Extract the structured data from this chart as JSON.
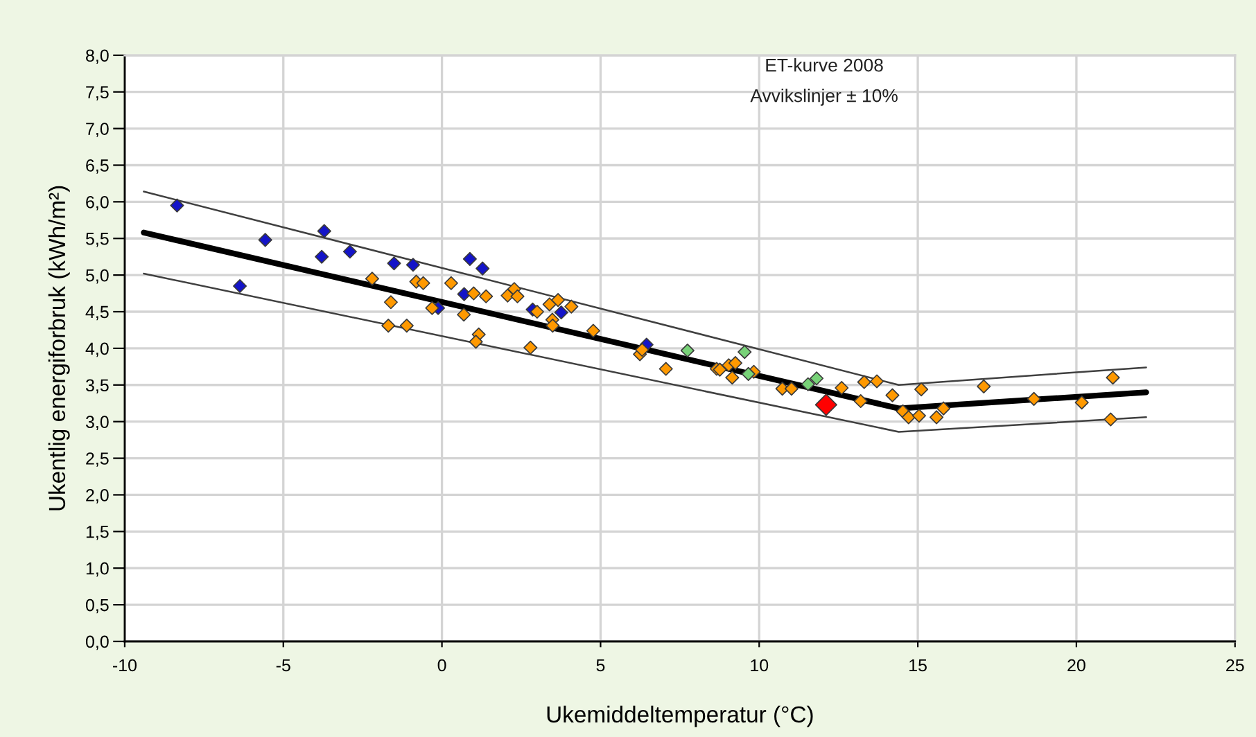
{
  "chart_data": {
    "type": "scatter",
    "xlabel": "Ukemiddeltemperatur (°C)",
    "ylabel": "Ukentlig energiforbruk (kWh/m²)",
    "annotations": [
      "ET-kurve 2008",
      "Avvikslinjer ± 10%"
    ],
    "xlim": [
      -10,
      25
    ],
    "xticks": [
      -10,
      -5,
      0,
      5,
      10,
      15,
      20,
      25
    ],
    "ylim": [
      0,
      8
    ],
    "yticks": [
      {
        "value": 0,
        "label": "0,0"
      },
      {
        "value": 0.5,
        "label": "0,5"
      },
      {
        "value": 1,
        "label": "1,0"
      },
      {
        "value": 1.5,
        "label": "1,5"
      },
      {
        "value": 2,
        "label": "2,0"
      },
      {
        "value": 2.5,
        "label": "2,5"
      },
      {
        "value": 3,
        "label": "3,0"
      },
      {
        "value": 3.5,
        "label": "3,5"
      },
      {
        "value": 4,
        "label": "4,0"
      },
      {
        "value": 4.5,
        "label": "4,5"
      },
      {
        "value": 5,
        "label": "5,0"
      },
      {
        "value": 5.5,
        "label": "5,5"
      },
      {
        "value": 6,
        "label": "6,0"
      },
      {
        "value": 6.5,
        "label": "6,5"
      },
      {
        "value": 7,
        "label": "7,0"
      },
      {
        "value": 7.5,
        "label": "7,5"
      },
      {
        "value": 8,
        "label": "8,0"
      }
    ],
    "grid": true,
    "marker": "diamond",
    "series": [
      {
        "type": "line",
        "marker": "none",
        "color": "#000000",
        "x": [
          -9.4,
          14.4,
          22.2
        ],
        "values": [
          5.58,
          3.18,
          3.4
        ]
      },
      {
        "type": "line",
        "marker": "none",
        "color": "#404040",
        "x": [
          -9.4,
          14.4,
          22.2
        ],
        "values": [
          6.14,
          3.5,
          3.74
        ]
      },
      {
        "type": "line",
        "marker": "none",
        "color": "#404040",
        "x": [
          -9.4,
          14.4,
          22.2
        ],
        "values": [
          5.02,
          2.86,
          3.06
        ]
      },
      {
        "color": "#1414c8",
        "x": [
          -8.35,
          -6.37,
          -5.57,
          -3.71,
          -3.79,
          -2.9,
          -1.51,
          -0.91,
          -0.12,
          0.88,
          1.28,
          0.7,
          2.86,
          3.76,
          6.45
        ],
        "values": [
          5.95,
          4.85,
          5.48,
          5.6,
          5.25,
          5.32,
          5.16,
          5.14,
          4.55,
          5.22,
          5.09,
          4.74,
          4.53,
          4.49,
          4.05
        ]
      },
      {
        "color": "#ff9900",
        "x": [
          -2.2,
          -1.61,
          -1.69,
          -1.11,
          -0.81,
          -0.59,
          -0.31,
          0.29,
          0.69,
          1.0,
          1.39,
          1.16,
          1.07,
          2.07,
          2.28,
          2.38,
          2.79,
          3.0,
          3.39,
          3.66,
          4.08,
          3.48,
          3.49,
          4.77,
          6.24,
          6.31,
          7.06,
          8.66,
          8.76,
          9.04,
          9.25,
          9.15,
          9.83,
          10.73,
          11.02,
          12.6,
          13.2,
          13.31,
          13.71,
          14.2,
          14.53,
          14.71,
          15.04,
          15.11,
          15.59,
          15.81,
          17.08,
          18.66,
          20.17,
          21.08,
          21.15
        ],
        "values": [
          4.95,
          4.63,
          4.31,
          4.31,
          4.91,
          4.89,
          4.55,
          4.89,
          4.46,
          4.75,
          4.71,
          4.19,
          4.09,
          4.72,
          4.81,
          4.71,
          4.01,
          4.5,
          4.6,
          4.66,
          4.57,
          4.39,
          4.31,
          4.24,
          3.92,
          3.98,
          3.72,
          3.72,
          3.71,
          3.77,
          3.8,
          3.6,
          3.68,
          3.45,
          3.45,
          3.46,
          3.28,
          3.54,
          3.55,
          3.36,
          3.14,
          3.06,
          3.08,
          3.44,
          3.06,
          3.18,
          3.48,
          3.31,
          3.26,
          3.03,
          3.6
        ]
      },
      {
        "color": "#78d278",
        "x": [
          7.74,
          9.54,
          9.66,
          11.54,
          11.81
        ],
        "values": [
          3.97,
          3.95,
          3.65,
          3.51,
          3.59
        ]
      },
      {
        "color": "#ff0000",
        "x": [
          12.11
        ],
        "values": [
          3.23
        ]
      }
    ]
  }
}
